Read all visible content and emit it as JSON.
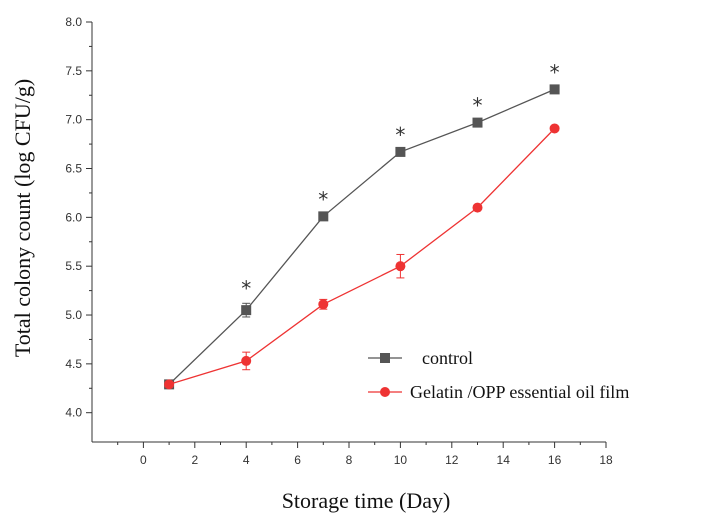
{
  "chart_data": {
    "type": "line",
    "xlabel": "Storage time (Day)",
    "ylabel": "Total colony count (log CFU/g)",
    "xlim": [
      -2,
      18
    ],
    "ylim": [
      3.7,
      8.0
    ],
    "xticks": [
      0,
      2,
      4,
      6,
      8,
      10,
      12,
      14,
      16,
      18
    ],
    "yticks": [
      4.0,
      4.5,
      5.0,
      5.5,
      6.0,
      6.5,
      7.0,
      7.5,
      8.0
    ],
    "x": [
      1,
      4,
      7,
      10,
      13,
      16
    ],
    "series": [
      {
        "name": "control",
        "color": "#555555",
        "marker": "square",
        "values": [
          4.29,
          5.05,
          6.01,
          6.67,
          6.97,
          7.31
        ],
        "errors": [
          0.0,
          0.07,
          0.02,
          0.02,
          0.02,
          0.02
        ]
      },
      {
        "name": "Gelatin /OPP essential oil film",
        "color": "#ee3333",
        "marker": "circle",
        "values": [
          4.29,
          4.53,
          5.11,
          5.5,
          6.1,
          6.91
        ],
        "errors": [
          0.0,
          0.09,
          0.05,
          0.12,
          0.02,
          0.02
        ]
      }
    ],
    "annotations": [
      {
        "x": 4,
        "text": "*"
      },
      {
        "x": 7,
        "text": "*"
      },
      {
        "x": 10,
        "text": "*"
      },
      {
        "x": 13,
        "text": "*"
      },
      {
        "x": 16,
        "text": "*"
      }
    ],
    "legend_position": "bottom-right",
    "grid": false
  }
}
